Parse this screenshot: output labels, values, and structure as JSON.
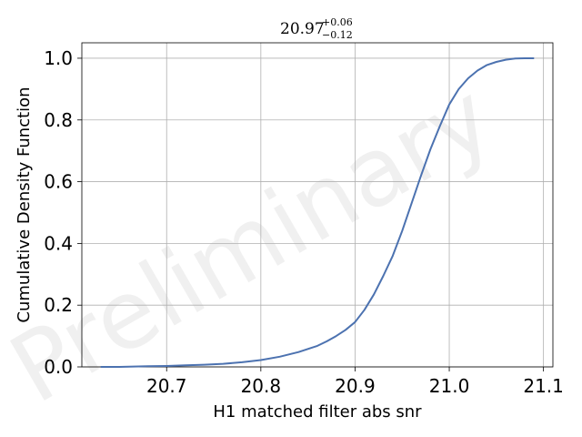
{
  "chart_data": {
    "type": "line",
    "title": {
      "value": "20.97",
      "upper": "+0.06",
      "lower": "−0.12"
    },
    "xlabel": "H1 matched filter abs snr",
    "ylabel": "Cumulative Density Function",
    "xlim": [
      20.61,
      21.11
    ],
    "ylim": [
      0.0,
      1.05
    ],
    "x_ticks": [
      "20.7",
      "20.8",
      "20.9",
      "21.0",
      "21.1"
    ],
    "y_ticks": [
      "0.0",
      "0.2",
      "0.4",
      "0.6",
      "0.8",
      "1.0"
    ],
    "grid": true,
    "watermark": "Preliminary",
    "series_color": "#4c72b0",
    "x": [
      20.63,
      20.65,
      20.68,
      20.7,
      20.72,
      20.74,
      20.76,
      20.78,
      20.8,
      20.82,
      20.84,
      20.86,
      20.87,
      20.88,
      20.89,
      20.9,
      20.91,
      20.92,
      20.93,
      20.94,
      20.95,
      20.96,
      20.97,
      20.98,
      20.99,
      21.0,
      21.01,
      21.02,
      21.03,
      21.04,
      21.05,
      21.06,
      21.07,
      21.08,
      21.09
    ],
    "y": [
      0.0,
      0.0,
      0.002,
      0.003,
      0.005,
      0.007,
      0.01,
      0.015,
      0.022,
      0.033,
      0.048,
      0.068,
      0.083,
      0.1,
      0.12,
      0.145,
      0.185,
      0.235,
      0.295,
      0.36,
      0.44,
      0.53,
      0.62,
      0.705,
      0.78,
      0.85,
      0.9,
      0.935,
      0.96,
      0.978,
      0.988,
      0.995,
      0.999,
      1.0,
      1.0
    ]
  }
}
